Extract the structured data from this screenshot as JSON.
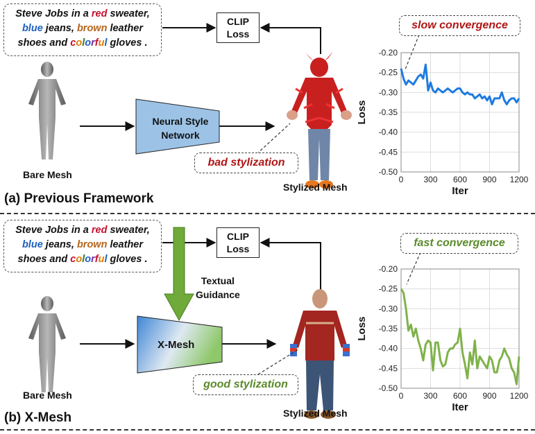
{
  "prompt": {
    "line1_pre": "Steve Jobs in a ",
    "line1_red": "red",
    "line1_post": " sweater,",
    "line2_blue": "blue",
    "line2_mid": " jeans, ",
    "line2_brown": "brown",
    "line2_post": " leather",
    "line3_pre": "shoes and ",
    "line3_colorful": [
      "c",
      "o",
      "l",
      "o",
      "r",
      "f",
      "u",
      "l"
    ],
    "line3_post": " gloves ."
  },
  "clip_loss": {
    "line1": "CLIP",
    "line2": "Loss"
  },
  "top": {
    "section_label": "(a) Previous Framework",
    "bare_mesh": "Bare Mesh",
    "network_line1": "Neural Style",
    "network_line2": "Network",
    "stylized_mesh": "Stylized Mesh",
    "callout_stylization": "bad stylization",
    "callout_convergence": "slow convergence"
  },
  "bottom": {
    "section_label": "(b) X-Mesh",
    "bare_mesh": "Bare Mesh",
    "network": "X-Mesh",
    "guidance_line1": "Textual",
    "guidance_line2": "Guidance",
    "stylized_mesh": "Stylized Mesh",
    "callout_stylization": "good stylization",
    "callout_convergence": "fast convergence"
  },
  "colors": {
    "red": "#c8102e",
    "blue": "#1f5fbf",
    "brown": "#b5651d",
    "slow_text": "#b01515",
    "fast_text": "#5a8a2a",
    "top_line": "#1e7be0",
    "bottom_line": "#7fb24a",
    "network_fill": "#9cc3e6",
    "guidance_arrow": "#6faa3a",
    "colorful": [
      "#c8102e",
      "#e07b00",
      "#2a7f2a",
      "#1f5fbf",
      "#7a2aa0",
      "#c8102e",
      "#e07b00",
      "#1f5fbf"
    ]
  },
  "chart_data": [
    {
      "type": "line",
      "xlabel": "Iter",
      "ylabel": "Loss",
      "xlim": [
        0,
        1200
      ],
      "ylim": [
        -0.5,
        -0.2
      ],
      "xticks": [
        "0",
        "300",
        "600",
        "900",
        "1200"
      ],
      "yticks": [
        "-0.20",
        "-0.25",
        "-0.30",
        "-0.35",
        "-0.40",
        "-0.45",
        "-0.50"
      ],
      "grid": true,
      "series": [
        {
          "values": [
            [
              0,
              -0.24
            ],
            [
              25,
              -0.265
            ],
            [
              50,
              -0.28
            ],
            [
              75,
              -0.27
            ],
            [
              100,
              -0.275
            ],
            [
              125,
              -0.28
            ],
            [
              150,
              -0.27
            ],
            [
              175,
              -0.26
            ],
            [
              200,
              -0.255
            ],
            [
              225,
              -0.265
            ],
            [
              250,
              -0.23
            ],
            [
              275,
              -0.295
            ],
            [
              300,
              -0.275
            ],
            [
              325,
              -0.295
            ],
            [
              350,
              -0.3
            ],
            [
              375,
              -0.29
            ],
            [
              400,
              -0.295
            ],
            [
              425,
              -0.3
            ],
            [
              450,
              -0.295
            ],
            [
              475,
              -0.29
            ],
            [
              500,
              -0.295
            ],
            [
              525,
              -0.3
            ],
            [
              550,
              -0.295
            ],
            [
              575,
              -0.29
            ],
            [
              600,
              -0.29
            ],
            [
              625,
              -0.3
            ],
            [
              650,
              -0.305
            ],
            [
              675,
              -0.3
            ],
            [
              700,
              -0.305
            ],
            [
              725,
              -0.305
            ],
            [
              750,
              -0.315
            ],
            [
              775,
              -0.31
            ],
            [
              800,
              -0.305
            ],
            [
              825,
              -0.315
            ],
            [
              850,
              -0.31
            ],
            [
              875,
              -0.32
            ],
            [
              900,
              -0.31
            ],
            [
              925,
              -0.33
            ],
            [
              950,
              -0.315
            ],
            [
              975,
              -0.315
            ],
            [
              1000,
              -0.315
            ],
            [
              1025,
              -0.3
            ],
            [
              1050,
              -0.32
            ],
            [
              1075,
              -0.33
            ],
            [
              1100,
              -0.32
            ],
            [
              1125,
              -0.315
            ],
            [
              1150,
              -0.315
            ],
            [
              1175,
              -0.325
            ],
            [
              1200,
              -0.315
            ]
          ]
        }
      ]
    },
    {
      "type": "line",
      "xlabel": "Iter",
      "ylabel": "Loss",
      "xlim": [
        0,
        1200
      ],
      "ylim": [
        -0.5,
        -0.2
      ],
      "xticks": [
        "0",
        "300",
        "600",
        "900",
        "1200"
      ],
      "yticks": [
        "-0.20",
        "-0.25",
        "-0.30",
        "-0.35",
        "-0.40",
        "-0.45",
        "-0.50"
      ],
      "grid": true,
      "series": [
        {
          "values": [
            [
              0,
              -0.25
            ],
            [
              25,
              -0.26
            ],
            [
              50,
              -0.3
            ],
            [
              75,
              -0.355
            ],
            [
              100,
              -0.34
            ],
            [
              125,
              -0.37
            ],
            [
              150,
              -0.35
            ],
            [
              175,
              -0.38
            ],
            [
              200,
              -0.4
            ],
            [
              225,
              -0.43
            ],
            [
              250,
              -0.39
            ],
            [
              275,
              -0.38
            ],
            [
              300,
              -0.385
            ],
            [
              325,
              -0.455
            ],
            [
              350,
              -0.385
            ],
            [
              375,
              -0.385
            ],
            [
              400,
              -0.43
            ],
            [
              425,
              -0.445
            ],
            [
              450,
              -0.44
            ],
            [
              475,
              -0.41
            ],
            [
              500,
              -0.4
            ],
            [
              525,
              -0.4
            ],
            [
              550,
              -0.39
            ],
            [
              575,
              -0.385
            ],
            [
              600,
              -0.35
            ],
            [
              625,
              -0.41
            ],
            [
              650,
              -0.44
            ],
            [
              675,
              -0.475
            ],
            [
              700,
              -0.41
            ],
            [
              725,
              -0.44
            ],
            [
              750,
              -0.38
            ],
            [
              775,
              -0.45
            ],
            [
              800,
              -0.42
            ],
            [
              825,
              -0.43
            ],
            [
              850,
              -0.44
            ],
            [
              875,
              -0.45
            ],
            [
              900,
              -0.42
            ],
            [
              925,
              -0.43
            ],
            [
              950,
              -0.46
            ],
            [
              975,
              -0.46
            ],
            [
              1000,
              -0.43
            ],
            [
              1025,
              -0.42
            ],
            [
              1050,
              -0.4
            ],
            [
              1075,
              -0.415
            ],
            [
              1100,
              -0.425
            ],
            [
              1125,
              -0.45
            ],
            [
              1150,
              -0.46
            ],
            [
              1175,
              -0.49
            ],
            [
              1200,
              -0.42
            ]
          ]
        }
      ]
    }
  ]
}
